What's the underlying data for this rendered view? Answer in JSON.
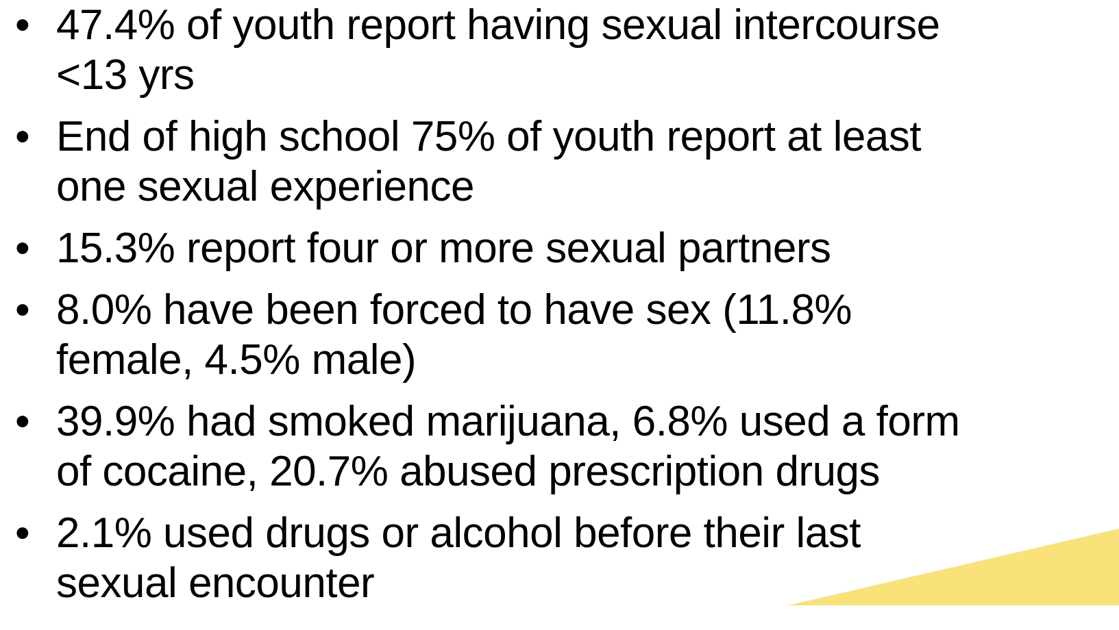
{
  "bullets": [
    {
      "lines": [
        "47.4% of youth report having sexual intercourse",
        "<13 yrs"
      ]
    },
    {
      "lines": [
        "End of high school 75% of youth report at least",
        "one sexual experience"
      ]
    },
    {
      "lines": [
        "15.3% report four or more sexual partners"
      ]
    },
    {
      "lines": [
        "8.0% have been forced to have sex (11.8%",
        "female, 4.5% male)"
      ]
    },
    {
      "lines": [
        "39.9% had smoked marijuana, 6.8% used a form",
        "of cocaine, 20.7% abused prescription drugs"
      ]
    },
    {
      "lines": [
        "2.1% used drugs or alcohol before their last",
        "sexual encounter"
      ]
    }
  ]
}
